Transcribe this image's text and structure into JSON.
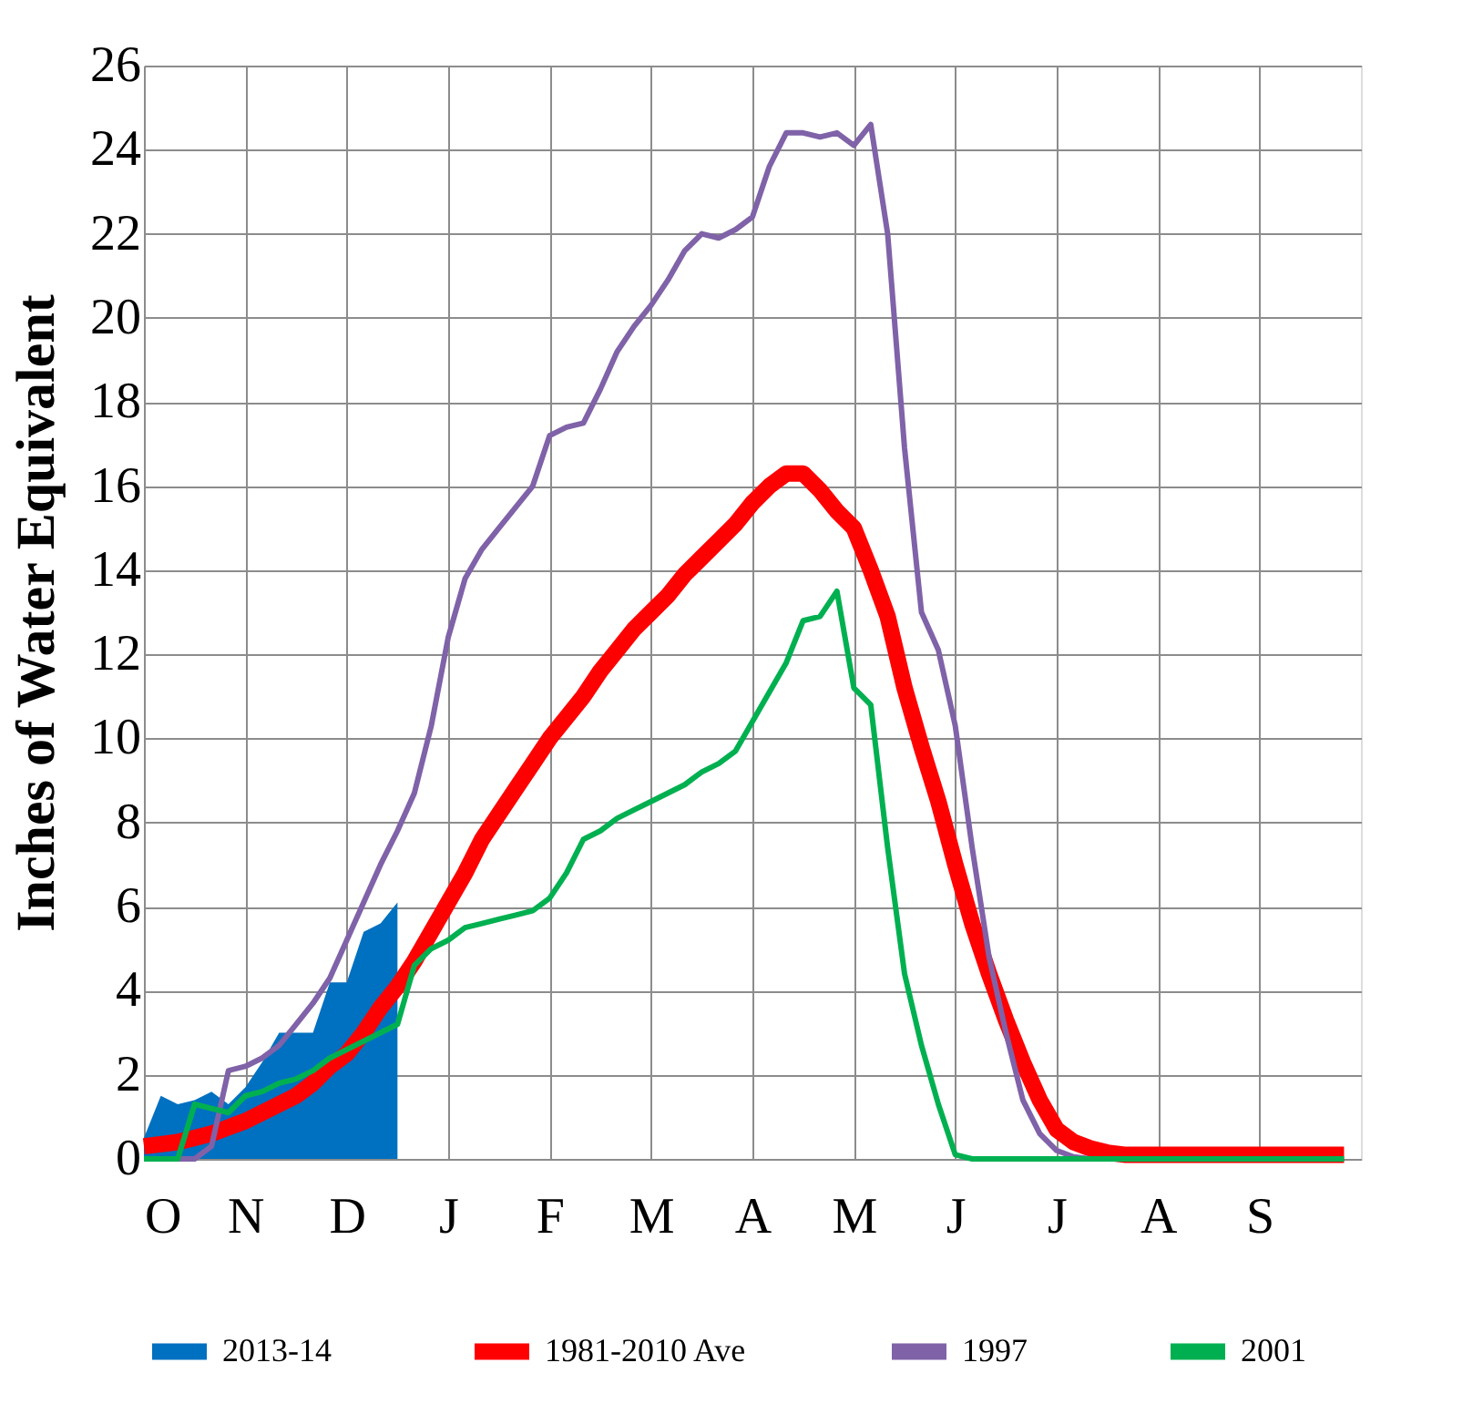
{
  "chart_data": {
    "type": "line",
    "ylabel": "Inches of Water Equivalent",
    "categories": [
      "O",
      null,
      null,
      null,
      null,
      null,
      "N",
      null,
      null,
      null,
      null,
      null,
      "D",
      null,
      null,
      null,
      null,
      null,
      "J",
      null,
      null,
      null,
      null,
      null,
      "F",
      null,
      null,
      null,
      null,
      null,
      "M",
      null,
      null,
      null,
      null,
      null,
      "A",
      null,
      null,
      null,
      null,
      null,
      "M",
      null,
      null,
      null,
      null,
      null,
      "J",
      null,
      null,
      null,
      null,
      null,
      "J",
      null,
      null,
      null,
      null,
      null,
      "A",
      null,
      null,
      null,
      null,
      null,
      "S",
      null,
      null,
      null,
      null,
      null
    ],
    "ylim": [
      0,
      26
    ],
    "yticks": [
      0,
      2,
      4,
      6,
      8,
      10,
      12,
      14,
      16,
      18,
      20,
      22,
      24,
      26
    ],
    "grid": true,
    "legend": "bottom",
    "series": [
      {
        "name": "2013-14",
        "type": "area",
        "color": "#0070c0",
        "values": [
          0.5,
          1.5,
          1.3,
          1.4,
          1.6,
          1.3,
          1.7,
          2.3,
          3.0,
          3.0,
          3.0,
          4.2,
          4.2,
          5.4,
          5.6,
          6.1,
          null,
          null,
          null,
          null,
          null,
          null,
          null,
          null,
          null,
          null,
          null,
          null,
          null,
          null,
          null,
          null,
          null,
          null,
          null,
          null,
          null,
          null,
          null,
          null,
          null,
          null,
          null,
          null,
          null,
          null,
          null,
          null,
          null,
          null,
          null,
          null,
          null,
          null,
          null,
          null,
          null,
          null,
          null,
          null,
          null,
          null,
          null,
          null,
          null,
          null,
          null,
          null,
          null,
          null,
          null,
          null
        ]
      },
      {
        "name": "1981-2010 Ave",
        "type": "line",
        "color": "#ff0000",
        "values": [
          0.3,
          0.35,
          0.4,
          0.5,
          0.6,
          0.75,
          0.9,
          1.1,
          1.3,
          1.5,
          1.8,
          2.2,
          2.5,
          3.0,
          3.6,
          4.1,
          4.7,
          5.4,
          6.1,
          6.8,
          7.6,
          8.2,
          8.8,
          9.4,
          10.0,
          10.5,
          11.0,
          11.6,
          12.1,
          12.6,
          13.0,
          13.4,
          13.9,
          14.3,
          14.7,
          15.1,
          15.6,
          16.0,
          16.3,
          16.3,
          15.9,
          15.4,
          15.0,
          14.0,
          12.9,
          11.2,
          9.8,
          8.5,
          7.0,
          5.6,
          4.4,
          3.3,
          2.3,
          1.4,
          0.7,
          0.4,
          0.25,
          0.15,
          0.1,
          0.1,
          0.1,
          0.1,
          0.1,
          0.1,
          0.1,
          0.1,
          0.1,
          0.1,
          0.1,
          0.1,
          0.1,
          0.1
        ]
      },
      {
        "name": "1997",
        "color": "#7f62a8",
        "values": [
          0,
          0,
          0,
          0,
          0.3,
          2.1,
          2.2,
          2.4,
          2.7,
          3.2,
          3.7,
          4.3,
          5.2,
          6.1,
          7.0,
          7.8,
          8.7,
          10.3,
          12.4,
          13.8,
          14.5,
          15.0,
          15.5,
          16.0,
          17.2,
          17.4,
          17.5,
          18.3,
          19.2,
          19.8,
          20.3,
          20.9,
          21.6,
          22.0,
          21.9,
          22.1,
          22.4,
          23.6,
          24.4,
          24.4,
          24.3,
          24.4,
          24.1,
          24.6,
          22.0,
          16.9,
          13.0,
          12.1,
          10.3,
          7.4,
          4.8,
          3.0,
          1.4,
          0.6,
          0.2,
          0.05,
          0,
          0,
          null,
          null,
          null,
          null,
          null,
          null,
          null,
          null,
          null,
          null,
          null,
          null,
          null,
          null
        ]
      },
      {
        "name": "2001",
        "color": "#00b050",
        "values": [
          0,
          0,
          0,
          1.3,
          1.2,
          1.1,
          1.5,
          1.6,
          1.8,
          1.9,
          2.1,
          2.4,
          2.6,
          2.8,
          3.0,
          3.2,
          4.6,
          5.0,
          5.2,
          5.5,
          5.6,
          5.7,
          5.8,
          5.9,
          6.2,
          6.8,
          7.6,
          7.8,
          8.1,
          8.3,
          8.5,
          8.7,
          8.9,
          9.2,
          9.4,
          9.7,
          10.4,
          11.1,
          11.8,
          12.8,
          12.9,
          13.5,
          11.2,
          10.8,
          7.4,
          4.4,
          2.7,
          1.3,
          0.1,
          0,
          0,
          0,
          0,
          0,
          0,
          0,
          0,
          0,
          0,
          0,
          0,
          0,
          0,
          0,
          0,
          0,
          0,
          0,
          0,
          0,
          0,
          0
        ]
      }
    ]
  }
}
